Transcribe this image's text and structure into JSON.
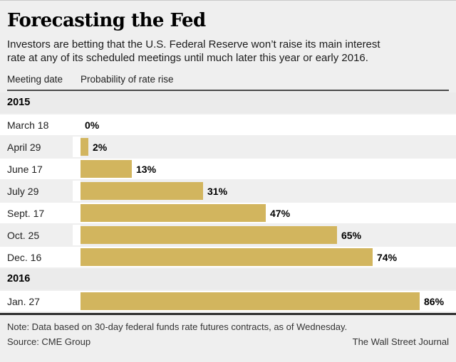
{
  "header": {
    "title": "Forecasting the Fed",
    "subtitle_line1": "Investors are betting that the U.S. Federal Reserve won’t raise its main interest",
    "subtitle_line2": "rate at any of its scheduled meetings until much later this year or early 2016.",
    "col_date": "Meeting date",
    "col_prob": "Probability of rate rise"
  },
  "chart_data": {
    "type": "bar",
    "orientation": "horizontal",
    "title": "Forecasting the Fed",
    "xlabel": "Probability of rate rise",
    "ylabel": "Meeting date",
    "xlim": [
      0,
      100
    ],
    "bar_color": "#d2b55e",
    "grid": false,
    "legend": "none",
    "groups": [
      {
        "year": "2015",
        "rows": [
          {
            "date": "March 18",
            "value": 0,
            "display": "0%"
          },
          {
            "date": "April 29",
            "value": 2,
            "display": "2%"
          },
          {
            "date": "June 17",
            "value": 13,
            "display": "13%"
          },
          {
            "date": "July 29",
            "value": 31,
            "display": "31%"
          },
          {
            "date": "Sept. 17",
            "value": 47,
            "display": "47%"
          },
          {
            "date": "Oct. 25",
            "value": 65,
            "display": "65%"
          },
          {
            "date": "Dec. 16",
            "value": 74,
            "display": "74%"
          }
        ]
      },
      {
        "year": "2016",
        "rows": [
          {
            "date": "Jan. 27",
            "value": 86,
            "display": "86%"
          }
        ]
      }
    ]
  },
  "footer": {
    "note": "Note: Data based on 30-day federal funds rate futures contracts, as of Wednesday.",
    "source": "Source: CME Group",
    "credit": "The Wall Street Journal"
  }
}
